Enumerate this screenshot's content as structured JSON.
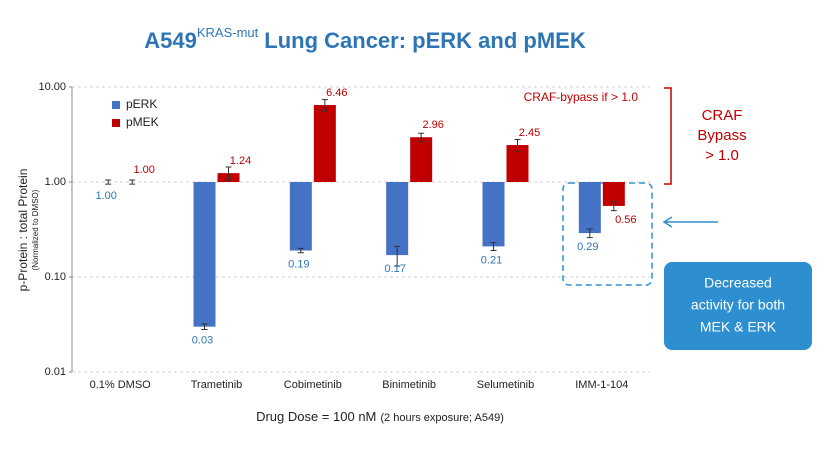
{
  "chart_data": {
    "type": "bar",
    "title": [
      "A549",
      "KRAS-mut",
      "Lung Cancer: pERK and pMEK"
    ],
    "y_label": [
      "p-Protein : total Protein",
      "(Normalized to DMSO)"
    ],
    "x_label": [
      "Drug Dose = 100 nM",
      "(2 hours exposure; A549)"
    ],
    "categories": [
      "0.1% DMSO",
      "Trametinib",
      "Cobimetinib",
      "Binimetinib",
      "Selumetinib",
      "IMM-1-104"
    ],
    "log_y": true,
    "baseline": 1,
    "ylim": [
      0.01,
      10
    ],
    "yticks": [
      {
        "value": 10,
        "label": "10.00"
      },
      {
        "value": 1,
        "label": "1.00"
      },
      {
        "value": 0.1,
        "label": "0.10"
      },
      {
        "value": 0.01,
        "label": "0.01"
      }
    ],
    "grid": true,
    "legend": "upper left",
    "series": [
      {
        "name": "pERK",
        "color": "#4472c4",
        "values": [
          1.0,
          0.03,
          0.19,
          0.17,
          0.21,
          0.29
        ],
        "value_labels": [
          "1.00",
          "0.03",
          "0.19",
          "0.17",
          "0.21",
          "0.29"
        ],
        "errors": [
          0.05,
          0.002,
          0.01,
          0.04,
          0.02,
          0.03
        ]
      },
      {
        "name": "pMEK",
        "color": "#c00000",
        "values": [
          1.0,
          1.24,
          6.46,
          2.96,
          2.45,
          0.56
        ],
        "value_labels": [
          "1.00",
          "1.24",
          "6.46",
          "2.96",
          "2.45",
          "0.56"
        ],
        "errors": [
          0.05,
          0.2,
          0.9,
          0.3,
          0.35,
          0.06
        ]
      }
    ],
    "annotations": {
      "bypass_note": "CRAF-bypass if > 1.0",
      "bracket": [
        "CRAF",
        "Bypass",
        "> 1.0"
      ],
      "callout": [
        "Decreased",
        "activity for both",
        "MEK & ERK"
      ]
    }
  }
}
